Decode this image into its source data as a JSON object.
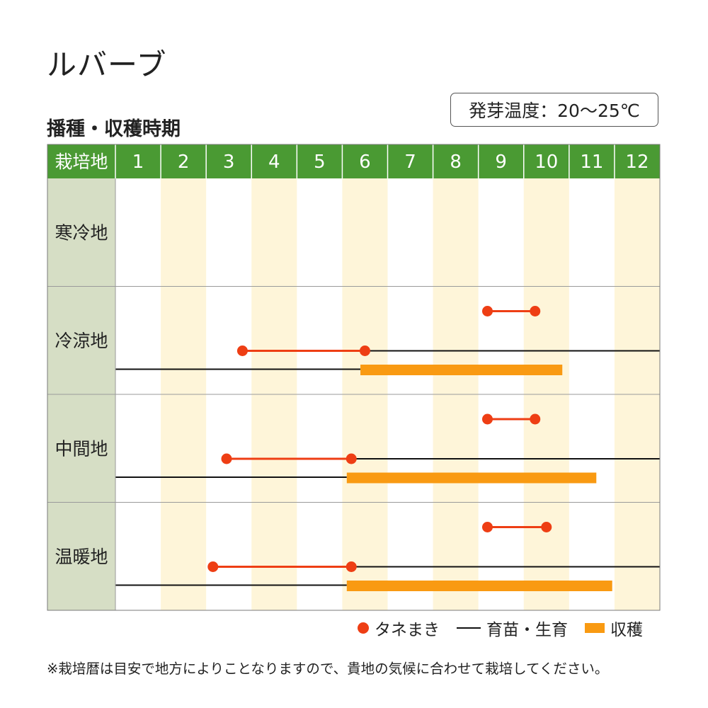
{
  "title": "ルバーブ",
  "subtitle": "播種・収穫時期",
  "badge": "発芽温度：20～25℃",
  "colors": {
    "header_green": "#4a9a33",
    "region_col": "#d6dec5",
    "stripe": "#fef5d9",
    "grid": "#9a9a9a",
    "seed": "#ee3e14",
    "grow": "#111111",
    "harvest": "#f99a12"
  },
  "legend": {
    "seed": "タネまき",
    "grow": "育苗・生育",
    "harvest": "収穫"
  },
  "note": "※栽培暦は目安で地方によりことなりますので、貴地の気候に合わせて栽培してください。",
  "chart_data": {
    "type": "gantt",
    "header_label": "栽培地",
    "months": [
      "1",
      "2",
      "3",
      "4",
      "5",
      "6",
      "7",
      "8",
      "9",
      "10",
      "11",
      "12"
    ],
    "regions": [
      {
        "name": "寒冷地",
        "seeding": [],
        "growth": [],
        "harvest": []
      },
      {
        "name": "冷涼地",
        "seeding": [
          [
            9.2,
            10.25
          ],
          [
            3.8,
            6.5
          ]
        ],
        "growth": [
          [
            6.5,
            13.0
          ],
          [
            1.0,
            6.4
          ]
        ],
        "harvest": [
          [
            6.4,
            10.85
          ]
        ]
      },
      {
        "name": "中間地",
        "seeding": [
          [
            9.2,
            10.25
          ],
          [
            3.45,
            6.2
          ]
        ],
        "growth": [
          [
            6.2,
            13.0
          ],
          [
            1.0,
            6.1
          ]
        ],
        "harvest": [
          [
            6.1,
            11.6
          ]
        ]
      },
      {
        "name": "温暖地",
        "seeding": [
          [
            9.2,
            10.5
          ],
          [
            3.15,
            6.2
          ]
        ],
        "growth": [
          [
            6.2,
            13.0
          ],
          [
            1.0,
            6.1
          ]
        ],
        "harvest": [
          [
            6.1,
            11.95
          ]
        ]
      }
    ]
  }
}
